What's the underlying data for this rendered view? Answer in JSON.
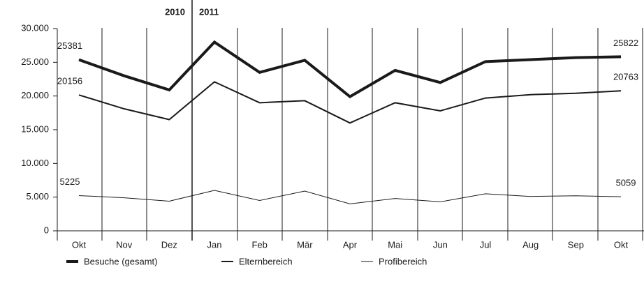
{
  "chart_data": {
    "type": "line",
    "annotations": [
      "2010",
      "2011"
    ],
    "categories": [
      "Okt",
      "Nov",
      "Dez",
      "Jan",
      "Feb",
      "Mär",
      "Apr",
      "Mai",
      "Jun",
      "Jul",
      "Aug",
      "Sep",
      "Okt"
    ],
    "series": [
      {
        "name": "Besuche (gesamt)",
        "color": "#1a1a1a",
        "line_width": 4,
        "values": [
          25381,
          23000,
          20900,
          28000,
          23500,
          25300,
          19900,
          23800,
          22000,
          25100,
          25400,
          25700,
          25822
        ]
      },
      {
        "name": "Elternbereich",
        "color": "#1a1a1a",
        "line_width": 2,
        "values": [
          20156,
          18100,
          16500,
          22100,
          19000,
          19300,
          16000,
          19000,
          17800,
          19700,
          20200,
          20400,
          20763
        ]
      },
      {
        "name": "Profibereich",
        "color": "#1a1a1a",
        "line_width": 1,
        "values": [
          5225,
          4900,
          4400,
          6000,
          4500,
          5900,
          4000,
          4800,
          4300,
          5500,
          5100,
          5200,
          5059
        ]
      }
    ],
    "ylim": [
      0,
      30000
    ],
    "yticks": [
      0,
      {
        "value": 5000,
        "label": "5.000"
      },
      {
        "value": 10000,
        "label": "10.000"
      },
      {
        "value": 15000,
        "label": "15.000"
      },
      {
        "value": 20000,
        "label": "20.000"
      },
      {
        "value": 25000,
        "label": "25.000"
      },
      {
        "value": 30000,
        "label": "30.000"
      }
    ],
    "grid": false,
    "legend": "bottom"
  }
}
